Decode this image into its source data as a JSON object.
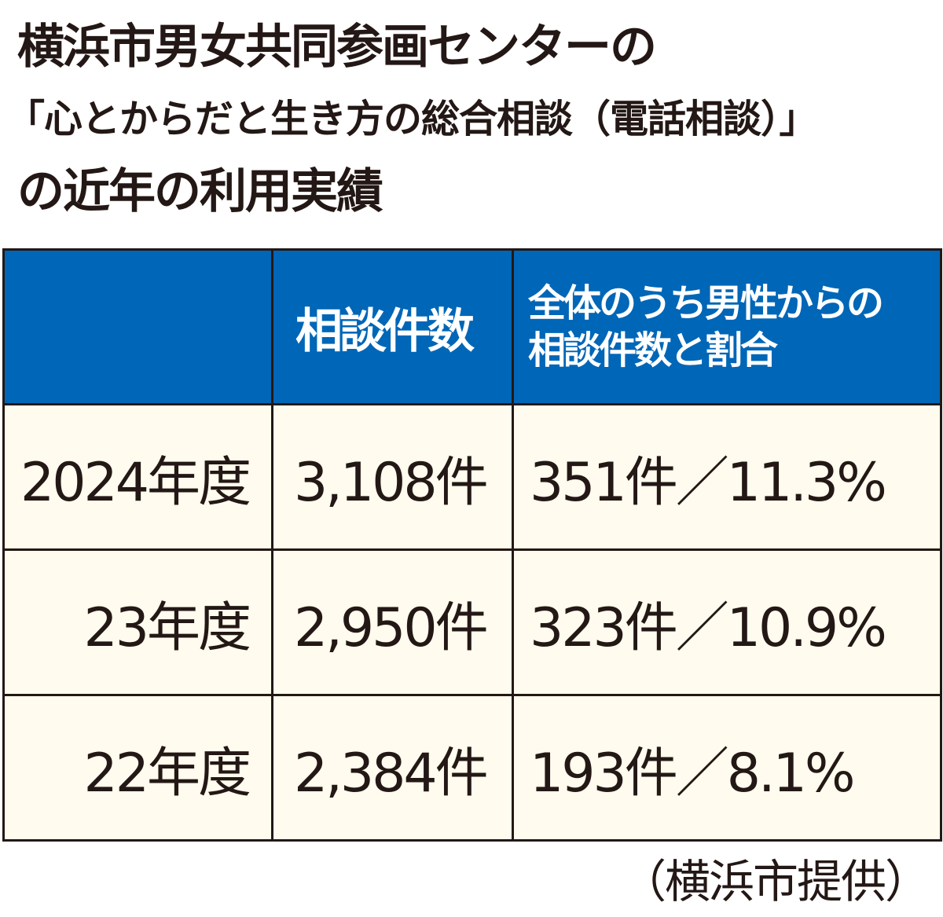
{
  "chart_data": {
    "type": "table",
    "title": [
      "横浜市男女共同参画センターの",
      "「心とからだと生き方の総合相談（電話相談）」",
      "の近年の利用実績"
    ],
    "columns": [
      "",
      "相談件数",
      "全体のうち男性からの相談件数と割合"
    ],
    "header_lines": [
      "全体のうち男性からの",
      "相談件数と割合"
    ],
    "rows": [
      {
        "year": "2024年度",
        "count": "3,108件",
        "men": "351件／11.3%"
      },
      {
        "year": "23年度",
        "count": "2,950件",
        "men": "323件／10.9%"
      },
      {
        "year": "22年度",
        "count": "2,384件",
        "men": "193件／8.1%"
      }
    ],
    "source": "（横浜市提供）",
    "colors": {
      "header": "#0066b7",
      "body": "#fffbee",
      "text": "#231815"
    }
  }
}
